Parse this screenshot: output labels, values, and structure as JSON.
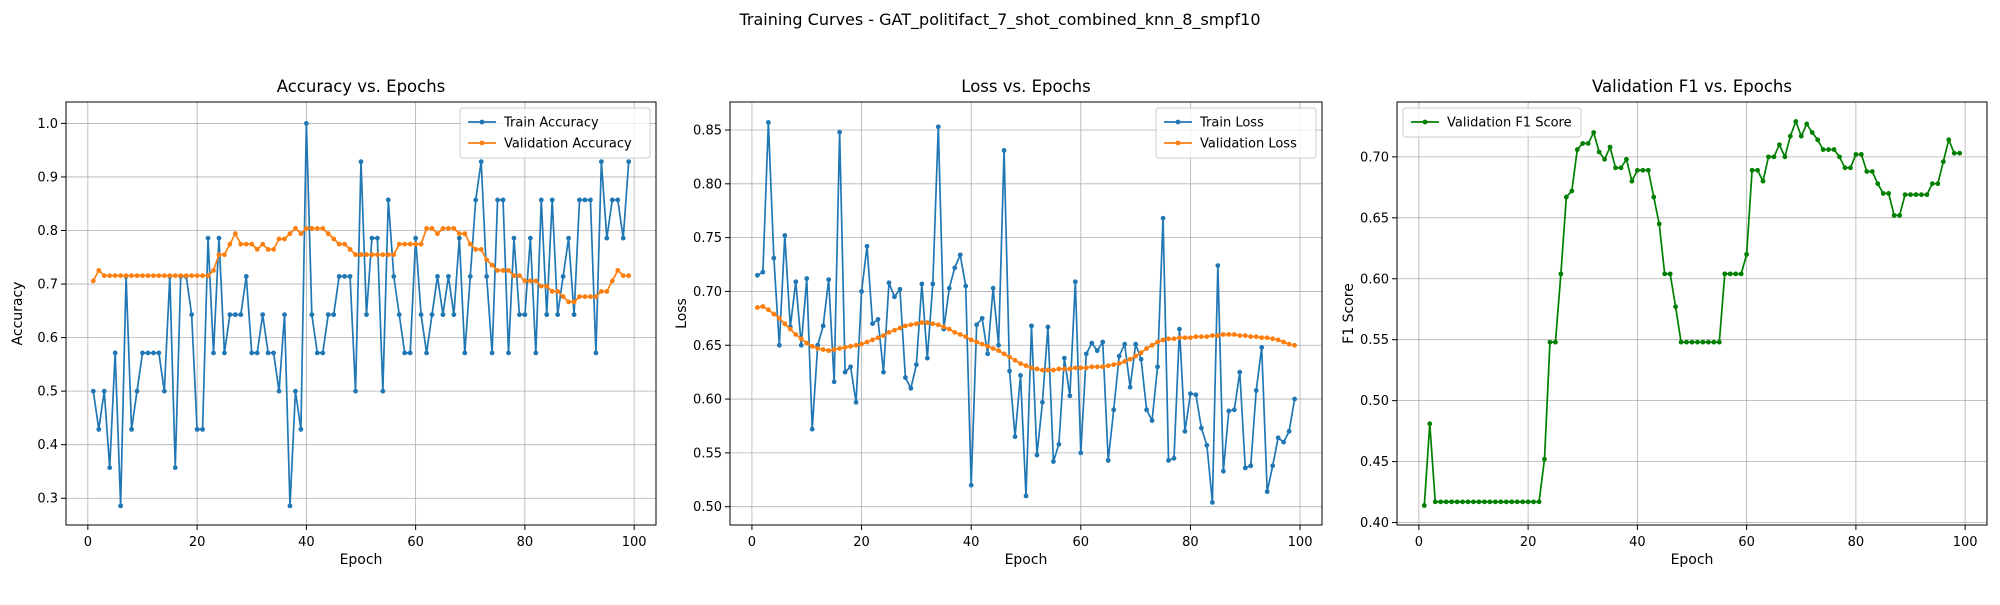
{
  "figure": {
    "title": "Training Curves - GAT_politifact_7_shot_combined_knn_8_smpf10"
  },
  "colors": {
    "train": "#1f77b4",
    "validation": "#ff7f0e",
    "f1": "#008000",
    "grid": "#b0b0b0"
  },
  "chart_data": [
    {
      "type": "line",
      "title": "Accuracy vs. Epochs",
      "xlabel": "Epoch",
      "ylabel": "Accuracy",
      "xlim": [
        -4,
        104
      ],
      "ylim": [
        0.25,
        1.04
      ],
      "xticks": [
        0,
        20,
        40,
        60,
        80,
        100
      ],
      "yticks": [
        0.3,
        0.4,
        0.5,
        0.6,
        0.7,
        0.8,
        0.9,
        1.0
      ],
      "ytick_labels": [
        "0.3",
        "0.4",
        "0.5",
        "0.6",
        "0.7",
        "0.8",
        "0.9",
        "1.0"
      ],
      "grid": true,
      "legend": "upper right",
      "x_start": 1,
      "series": [
        {
          "name": "Train Accuracy",
          "color": "#1f77b4",
          "values": [
            0.5,
            0.4286,
            0.5,
            0.3571,
            0.5714,
            0.2857,
            0.7143,
            0.4286,
            0.5,
            0.5714,
            0.5714,
            0.5714,
            0.5714,
            0.5,
            0.7143,
            0.3571,
            0.7143,
            0.7143,
            0.6429,
            0.4286,
            0.4286,
            0.7857,
            0.5714,
            0.7857,
            0.5714,
            0.6429,
            0.6429,
            0.6429,
            0.7143,
            0.5714,
            0.5714,
            0.6429,
            0.5714,
            0.5714,
            0.5,
            0.6429,
            0.2857,
            0.5,
            0.4286,
            1.0,
            0.6429,
            0.5714,
            0.5714,
            0.6429,
            0.6429,
            0.7143,
            0.7143,
            0.7143,
            0.5,
            0.9286,
            0.6429,
            0.7857,
            0.7857,
            0.5,
            0.8571,
            0.7143,
            0.6429,
            0.5714,
            0.5714,
            0.7857,
            0.6429,
            0.5714,
            0.6429,
            0.7143,
            0.6429,
            0.7143,
            0.6429,
            0.7857,
            0.5714,
            0.7143,
            0.8571,
            0.9286,
            0.7143,
            0.5714,
            0.8571,
            0.8571,
            0.5714,
            0.7857,
            0.6429,
            0.6429,
            0.7857,
            0.5714,
            0.8571,
            0.6429,
            0.8571,
            0.6429,
            0.7143,
            0.7857,
            0.6429,
            0.8571,
            0.8571,
            0.8571,
            0.5714,
            0.9286,
            0.7857,
            0.8571,
            0.8571,
            0.7857,
            0.9286
          ]
        },
        {
          "name": "Validation Accuracy",
          "color": "#ff7f0e",
          "values": [
            0.7059,
            0.7255,
            0.7157,
            0.7157,
            0.7157,
            0.7157,
            0.7157,
            0.7157,
            0.7157,
            0.7157,
            0.7157,
            0.7157,
            0.7157,
            0.7157,
            0.7157,
            0.7157,
            0.7157,
            0.7157,
            0.7157,
            0.7157,
            0.7157,
            0.7157,
            0.7255,
            0.7549,
            0.7549,
            0.7745,
            0.7941,
            0.7745,
            0.7745,
            0.7745,
            0.7647,
            0.7745,
            0.7647,
            0.7647,
            0.7843,
            0.7843,
            0.7941,
            0.8039,
            0.7941,
            0.8039,
            0.8039,
            0.8039,
            0.8039,
            0.7941,
            0.7843,
            0.7745,
            0.7745,
            0.7647,
            0.7549,
            0.7549,
            0.7549,
            0.7549,
            0.7549,
            0.7549,
            0.7549,
            0.7549,
            0.7745,
            0.7745,
            0.7745,
            0.7745,
            0.7745,
            0.8039,
            0.8039,
            0.7941,
            0.8039,
            0.8039,
            0.8039,
            0.7941,
            0.7941,
            0.7745,
            0.7647,
            0.7647,
            0.7451,
            0.7353,
            0.7255,
            0.7255,
            0.7255,
            0.7157,
            0.7157,
            0.7059,
            0.7059,
            0.7059,
            0.6961,
            0.6961,
            0.6863,
            0.6863,
            0.6765,
            0.6667,
            0.6667,
            0.6765,
            0.6765,
            0.6765,
            0.6765,
            0.6863,
            0.6863,
            0.7059,
            0.7255,
            0.7157,
            0.7157
          ]
        }
      ]
    },
    {
      "type": "line",
      "title": "Loss vs. Epochs",
      "xlabel": "Epoch",
      "ylabel": "Loss",
      "xlim": [
        -4,
        104
      ],
      "ylim": [
        0.483,
        0.876
      ],
      "xticks": [
        0,
        20,
        40,
        60,
        80,
        100
      ],
      "yticks": [
        0.5,
        0.55,
        0.6,
        0.65,
        0.7,
        0.75,
        0.8,
        0.85
      ],
      "ytick_labels": [
        "0.50",
        "0.55",
        "0.60",
        "0.65",
        "0.70",
        "0.75",
        "0.80",
        "0.85"
      ],
      "grid": true,
      "legend": "upper right",
      "x_start": 1,
      "series": [
        {
          "name": "Train Loss",
          "color": "#1f77b4",
          "values": [
            0.715,
            0.718,
            0.857,
            0.731,
            0.65,
            0.752,
            0.667,
            0.709,
            0.65,
            0.712,
            0.572,
            0.65,
            0.668,
            0.711,
            0.616,
            0.848,
            0.625,
            0.63,
            0.597,
            0.7,
            0.742,
            0.67,
            0.674,
            0.625,
            0.708,
            0.695,
            0.702,
            0.62,
            0.61,
            0.632,
            0.707,
            0.638,
            0.707,
            0.853,
            0.665,
            0.703,
            0.722,
            0.734,
            0.705,
            0.52,
            0.669,
            0.675,
            0.642,
            0.703,
            0.65,
            0.831,
            0.626,
            0.565,
            0.622,
            0.51,
            0.668,
            0.548,
            0.597,
            0.667,
            0.542,
            0.558,
            0.638,
            0.603,
            0.709,
            0.55,
            0.642,
            0.652,
            0.645,
            0.653,
            0.543,
            0.59,
            0.64,
            0.651,
            0.611,
            0.651,
            0.637,
            0.59,
            0.58,
            0.63,
            0.768,
            0.543,
            0.545,
            0.665,
            0.57,
            0.605,
            0.604,
            0.573,
            0.557,
            0.504,
            0.724,
            0.533,
            0.589,
            0.59,
            0.625,
            0.536,
            0.538,
            0.608,
            0.648,
            0.514,
            0.538,
            0.564,
            0.56,
            0.57,
            0.6
          ]
        },
        {
          "name": "Validation Loss",
          "color": "#ff7f0e",
          "values": [
            0.685,
            0.686,
            0.683,
            0.679,
            0.675,
            0.67,
            0.665,
            0.66,
            0.656,
            0.652,
            0.649,
            0.647,
            0.646,
            0.645,
            0.646,
            0.647,
            0.648,
            0.649,
            0.65,
            0.651,
            0.653,
            0.655,
            0.657,
            0.659,
            0.662,
            0.664,
            0.666,
            0.668,
            0.669,
            0.67,
            0.671,
            0.671,
            0.67,
            0.669,
            0.667,
            0.665,
            0.662,
            0.66,
            0.658,
            0.655,
            0.653,
            0.651,
            0.649,
            0.647,
            0.645,
            0.642,
            0.639,
            0.636,
            0.633,
            0.631,
            0.629,
            0.628,
            0.627,
            0.627,
            0.627,
            0.628,
            0.628,
            0.628,
            0.629,
            0.629,
            0.629,
            0.63,
            0.63,
            0.63,
            0.631,
            0.632,
            0.633,
            0.635,
            0.637,
            0.64,
            0.643,
            0.647,
            0.65,
            0.653,
            0.655,
            0.656,
            0.656,
            0.657,
            0.657,
            0.657,
            0.658,
            0.658,
            0.658,
            0.659,
            0.659,
            0.66,
            0.66,
            0.66,
            0.659,
            0.659,
            0.658,
            0.658,
            0.657,
            0.657,
            0.656,
            0.655,
            0.653,
            0.651,
            0.65
          ]
        }
      ]
    },
    {
      "type": "line",
      "title": "Validation F1 vs. Epochs",
      "xlabel": "Epoch",
      "ylabel": "F1 Score",
      "xlim": [
        -4,
        104
      ],
      "ylim": [
        0.398,
        0.745
      ],
      "xticks": [
        0,
        20,
        40,
        60,
        80,
        100
      ],
      "yticks": [
        0.4,
        0.45,
        0.5,
        0.55,
        0.6,
        0.65,
        0.7
      ],
      "ytick_labels": [
        "0.40",
        "0.45",
        "0.50",
        "0.55",
        "0.60",
        "0.65",
        "0.70"
      ],
      "grid": true,
      "legend": "upper left",
      "x_start": 1,
      "series": [
        {
          "name": "Validation F1 Score",
          "color": "#008000",
          "values": [
            0.414,
            0.481,
            0.417,
            0.417,
            0.417,
            0.417,
            0.417,
            0.417,
            0.417,
            0.417,
            0.417,
            0.417,
            0.417,
            0.417,
            0.417,
            0.417,
            0.417,
            0.417,
            0.417,
            0.417,
            0.417,
            0.417,
            0.452,
            0.548,
            0.548,
            0.604,
            0.667,
            0.672,
            0.706,
            0.711,
            0.711,
            0.72,
            0.704,
            0.698,
            0.708,
            0.691,
            0.691,
            0.698,
            0.68,
            0.689,
            0.689,
            0.689,
            0.667,
            0.645,
            0.604,
            0.604,
            0.577,
            0.548,
            0.548,
            0.548,
            0.548,
            0.548,
            0.548,
            0.548,
            0.548,
            0.604,
            0.604,
            0.604,
            0.604,
            0.62,
            0.689,
            0.689,
            0.68,
            0.7,
            0.7,
            0.71,
            0.7,
            0.717,
            0.729,
            0.717,
            0.727,
            0.72,
            0.714,
            0.706,
            0.706,
            0.706,
            0.7,
            0.691,
            0.691,
            0.702,
            0.702,
            0.688,
            0.688,
            0.678,
            0.67,
            0.67,
            0.652,
            0.652,
            0.669,
            0.669,
            0.669,
            0.669,
            0.669,
            0.678,
            0.678,
            0.696,
            0.714,
            0.703,
            0.703
          ]
        }
      ]
    }
  ]
}
